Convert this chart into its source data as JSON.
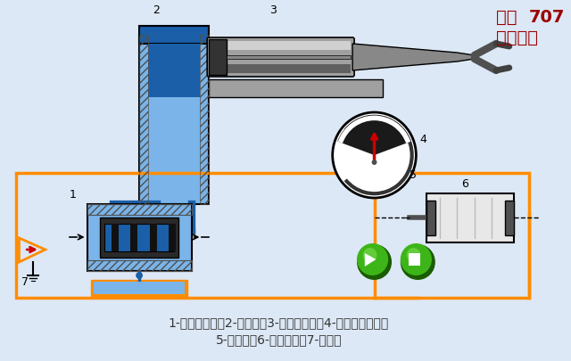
{
  "bg_color": "#dce8f5",
  "title_line1": "化工707",
  "title_line2": "剪辑制作",
  "title_color": "#9b0000",
  "title_bold": "707",
  "caption_line1": "1-电液伺服阀；2-液压缸；3-机械手手臂；4-齿轮齿条机构；",
  "caption_line2": "5-电位器；6-步进电机；7-放大器",
  "caption_color": "#333333",
  "orange": "#FF8C00",
  "blue_dark": "#1a5fa8",
  "blue_light": "#7ab4e8",
  "gray_metal": "#a0a0a0",
  "gray_dark": "#505050",
  "white": "#ffffff",
  "black": "#000000",
  "green_btn": "#3db518",
  "red_arrow": "#cc0000",
  "hatch_color": "#555555"
}
